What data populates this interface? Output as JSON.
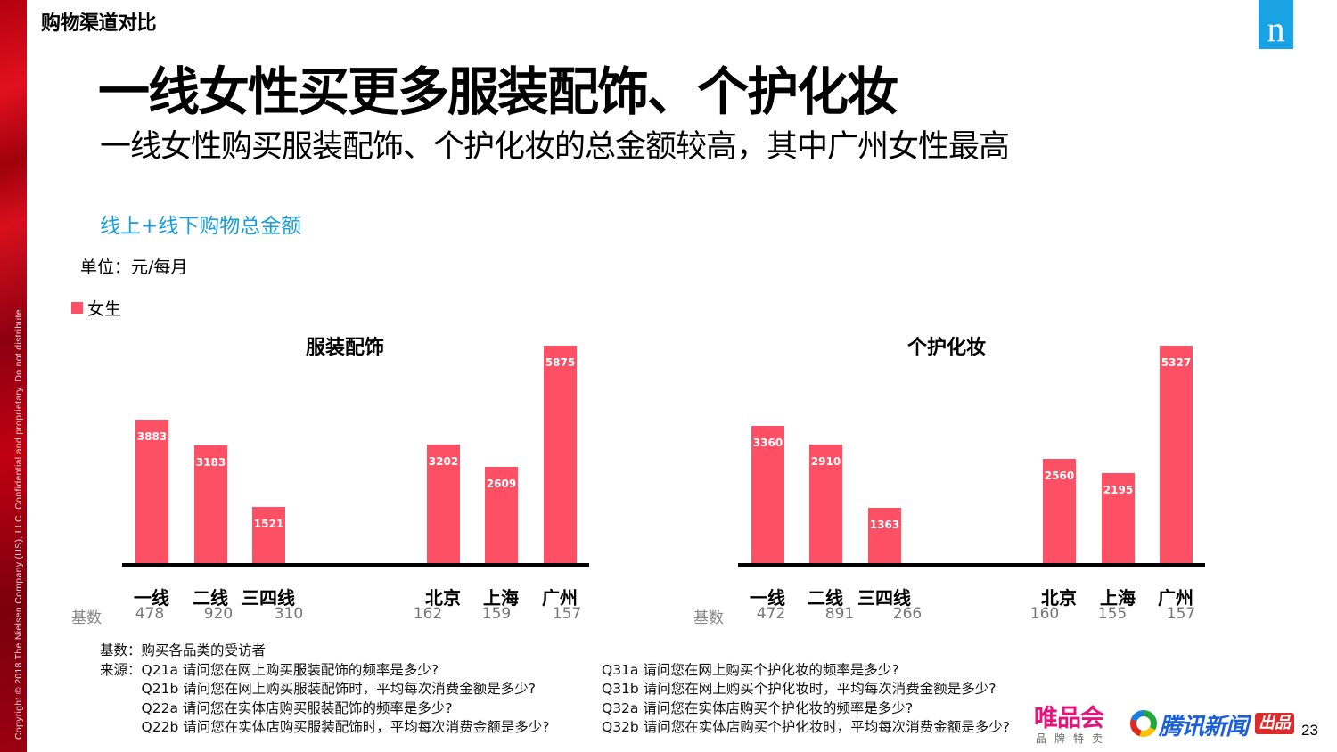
{
  "side": {
    "copyright": "Copyright © 2018 The Nielsen Company (US), LLC. Confidential and proprietary. Do not distribute."
  },
  "header": {
    "section": "购物渠道对比",
    "logo_letter": "n"
  },
  "title": "一线女性买更多服装配饰、个护化妆",
  "subtitle": "一线女性购买服装配饰、个护化妆的总金额较高，其中广州女性最高",
  "metric_label": "线上+线下购物总金额",
  "unit_label": "单位：元/每月",
  "legend": {
    "label": "女生",
    "color": "#fd5064"
  },
  "base_label": "基数",
  "chart_data": [
    {
      "type": "bar",
      "title": "服装配饰",
      "categories": [
        "一线",
        "二线",
        "三四线",
        "北京",
        "上海",
        "广州"
      ],
      "series": [
        {
          "name": "女生",
          "values": [
            3883,
            3183,
            1521,
            3202,
            2609,
            5875
          ],
          "color": "#fd5064"
        }
      ],
      "base_counts": [
        478,
        920,
        310,
        162,
        159,
        157
      ],
      "xlabel": "",
      "ylabel": "元/每月",
      "ylim": [
        0,
        5875
      ],
      "grid": false,
      "legend_position": "top-left",
      "data_labels": true
    },
    {
      "type": "bar",
      "title": "个护化妆",
      "categories": [
        "一线",
        "二线",
        "三四线",
        "北京",
        "上海",
        "广州"
      ],
      "series": [
        {
          "name": "女生",
          "values": [
            3360,
            2910,
            1363,
            2560,
            2195,
            5327
          ],
          "color": "#fd5064"
        }
      ],
      "base_counts": [
        472,
        891,
        266,
        160,
        155,
        157
      ],
      "xlabel": "",
      "ylabel": "元/每月",
      "ylim": [
        0,
        5327
      ],
      "grid": false,
      "legend_position": "top-left",
      "data_labels": true
    }
  ],
  "notes": {
    "base": "基数：购买各品类的受访者",
    "source_label": "来源：",
    "left": [
      "Q21a 请问您在网上购买服装配饰的频率是多少?",
      "Q21b 请问您在网上购买服装配饰时，平均每次消费金额是多少?",
      "Q22a 请问您在实体店购买服装配饰的频率是多少?",
      "Q22b 请问您在实体店购买服装配饰时，平均每次消费金额是多少?"
    ],
    "right": [
      "Q31a 请问您在网上购买个护化妆的频率是多少?",
      "Q31b 请问您在网上购买个护化妆时，平均每次消费金额是多少?",
      "Q32a 请问您在实体店购买个护化妆的频率是多少?",
      "Q32b 请问您在实体店购买个护化妆时，平均每次消费金额是多少?"
    ]
  },
  "footer": {
    "vip_name": "唯品会",
    "vip_tagline": "品牌特卖",
    "tencent_name": "腾讯新闻",
    "tencent_badge": "出品",
    "page_number": "23"
  }
}
